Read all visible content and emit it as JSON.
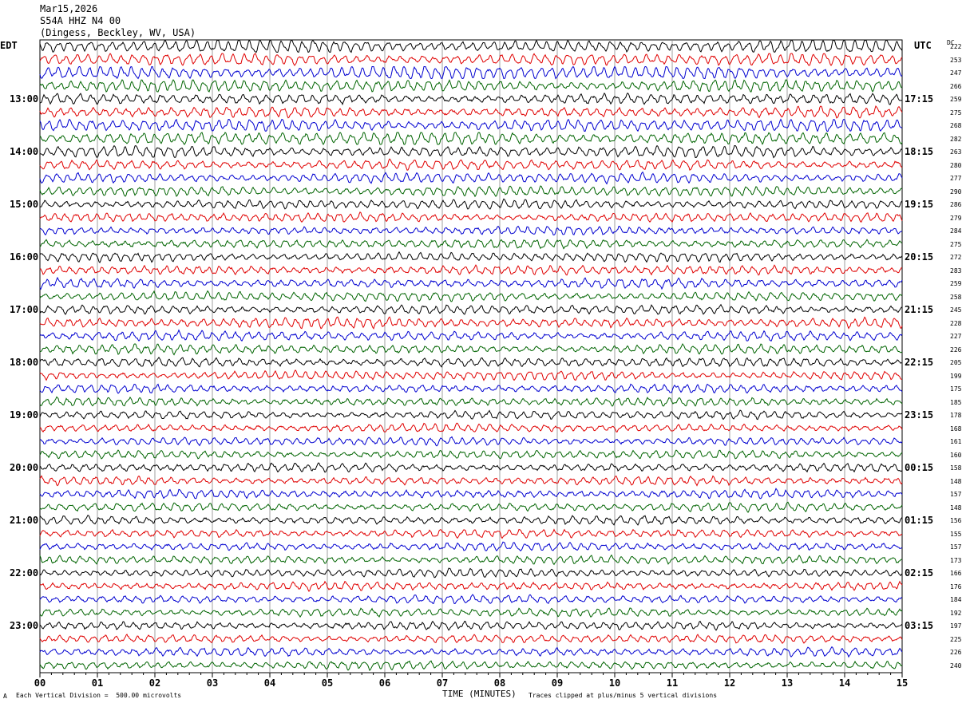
{
  "header": {
    "date": "Mar15,2026",
    "station": "S54A HHZ N4 00",
    "location": "(Dingess, Beckley, WV, USA)"
  },
  "left_tz": "EDT",
  "right_tz": "UTC",
  "dc_label": "DC",
  "footer": {
    "scale_note": "Each Vertical Division =  500.00 microvolts",
    "xlabel": "TIME (MINUTES)",
    "clip_note": "Traces clipped at plus/minus 5 vertical divisions",
    "corner_mark": "A"
  },
  "chart_data": {
    "type": "line",
    "title": "S54A HHZ N4 00",
    "xlabel": "TIME (MINUTES)",
    "ylabel": "",
    "xlim": [
      0,
      15
    ],
    "x_ticks": [
      "00",
      "01",
      "02",
      "03",
      "04",
      "05",
      "06",
      "07",
      "08",
      "09",
      "10",
      "11",
      "12",
      "13",
      "14",
      "15"
    ],
    "grid": true,
    "trace_colors": [
      "#000000",
      "#e00000",
      "#0000d0",
      "#006400"
    ],
    "left_hour_labels": [
      "13:00",
      "14:00",
      "15:00",
      "16:00",
      "17:00",
      "18:00",
      "19:00",
      "20:00",
      "21:00",
      "22:00",
      "23:00"
    ],
    "right_hour_labels": [
      "17:15",
      "18:15",
      "19:15",
      "20:15",
      "21:15",
      "22:15",
      "23:15",
      "00:15",
      "01:15",
      "02:15",
      "03:15"
    ],
    "dc_offsets": [
      222,
      253,
      247,
      266,
      259,
      275,
      268,
      282,
      263,
      280,
      277,
      290,
      286,
      279,
      284,
      275,
      272,
      283,
      259,
      258,
      245,
      228,
      227,
      226,
      205,
      199,
      175,
      185,
      178,
      168,
      161,
      160,
      158,
      148,
      157,
      148,
      156,
      155,
      157,
      173,
      166,
      176,
      184,
      192,
      197,
      225,
      226,
      240
    ],
    "num_traces": 48,
    "trace_amplitude_relative": [
      1.3,
      1.2,
      1.4,
      1.2,
      1.0,
      1.0,
      1.2,
      1.3,
      1.1,
      1.0,
      1.0,
      1.0,
      0.9,
      0.9,
      0.8,
      0.9,
      0.9,
      0.9,
      0.9,
      0.9,
      0.9,
      1.0,
      0.9,
      0.9,
      0.9,
      0.9,
      0.8,
      0.8,
      0.8,
      0.8,
      0.8,
      0.8,
      0.8,
      0.8,
      0.8,
      0.8,
      0.8,
      0.8,
      0.8,
      0.8,
      0.8,
      0.8,
      0.8,
      0.8,
      0.8,
      0.8,
      0.8,
      0.8
    ],
    "scale_microvolts_per_division": 500.0,
    "clip_divisions": 5
  }
}
